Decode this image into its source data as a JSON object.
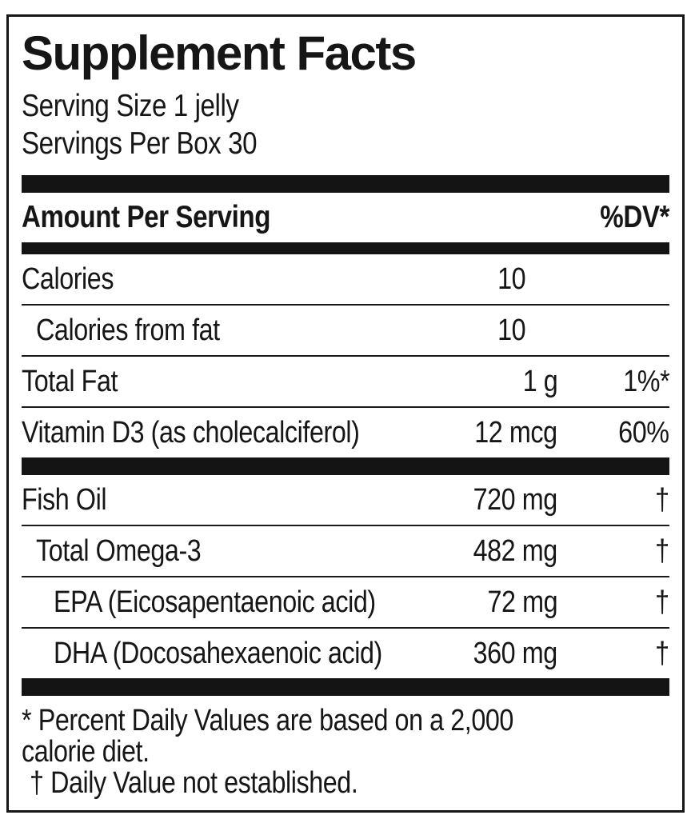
{
  "label": {
    "title": "Supplement Facts",
    "serving_size": "Serving Size 1 jelly",
    "servings_per_box": "Servings Per Box 30",
    "header": {
      "amount_per_serving": "Amount Per Serving",
      "dv": "%DV*"
    },
    "rows_main": [
      {
        "name": "Calories",
        "amount": "10",
        "dv": ""
      },
      {
        "name": "Calories from fat",
        "amount": "10",
        "dv": ""
      },
      {
        "name": "Total Fat",
        "amount": "1 g",
        "dv": "1%*"
      },
      {
        "name": "Vitamin D3 (as cholecalciferol)",
        "amount": "12 mcg",
        "dv": "60%"
      }
    ],
    "rows_blend": [
      {
        "name": "Fish Oil",
        "amount": "720 mg",
        "dv": "†"
      },
      {
        "name": "Total Omega-3",
        "amount": "482 mg",
        "dv": "†"
      },
      {
        "name": "EPA (Eicosapentaenoic acid)",
        "amount": "72 mg",
        "dv": "†"
      },
      {
        "name": "DHA (Docosahexaenoic acid)",
        "amount": "360 mg",
        "dv": "†"
      }
    ],
    "footnotes": [
      "* Percent Daily Values are based on a 2,000",
      "calorie diet.",
      "† Daily Value not established."
    ],
    "colors": {
      "ink": "#161616",
      "background": "#ffffff"
    }
  }
}
